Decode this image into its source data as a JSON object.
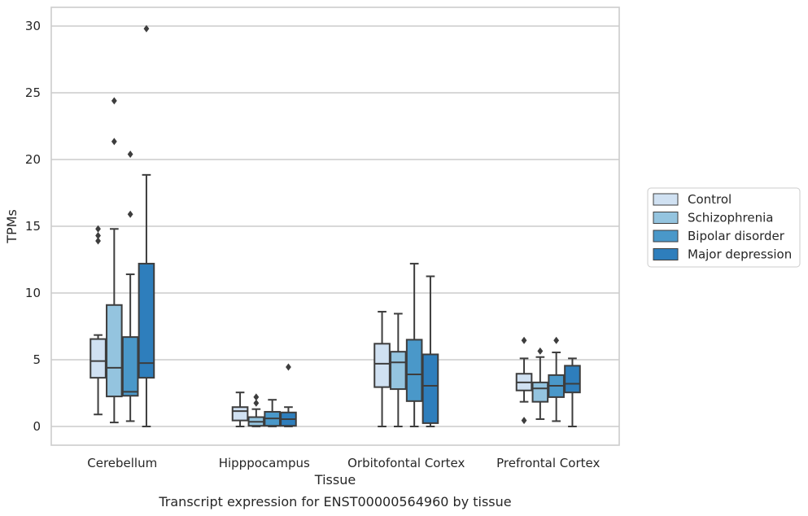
{
  "chart_data": {
    "type": "box",
    "xlabel": "Tissue",
    "ylabel": "TPMs",
    "caption": "Transcript expression for ENST00000564960 by tissue",
    "ylim": [
      -1.3,
      31.4
    ],
    "yticks": [
      0,
      5,
      10,
      15,
      20,
      25,
      30
    ],
    "grid": "horizontal",
    "legend_position": "right",
    "categories": [
      "Cerebellum",
      "Hipppocampus",
      "Orbitofontal Cortex",
      "Prefrontal Cortex"
    ],
    "series": [
      {
        "name": "Control",
        "color": "#d0e1f2",
        "boxes": [
          {
            "whisker_low": 0.9,
            "q1": 3.65,
            "median": 4.9,
            "q3": 6.55,
            "whisker_high": 6.85,
            "outliers": [
              13.9,
              14.3,
              14.8
            ]
          },
          {
            "whisker_low": 0.0,
            "q1": 0.45,
            "median": 1.15,
            "q3": 1.45,
            "whisker_high": 2.55,
            "outliers": []
          },
          {
            "whisker_low": 0.0,
            "q1": 2.95,
            "median": 4.7,
            "q3": 6.2,
            "whisker_high": 8.6,
            "outliers": []
          },
          {
            "whisker_low": 1.85,
            "q1": 2.7,
            "median": 3.3,
            "q3": 3.95,
            "whisker_high": 5.1,
            "outliers": [
              0.45,
              6.45
            ]
          }
        ]
      },
      {
        "name": "Schizophrenia",
        "color": "#94c4df",
        "boxes": [
          {
            "whisker_low": 0.3,
            "q1": 2.25,
            "median": 4.4,
            "q3": 9.1,
            "whisker_high": 14.8,
            "outliers": [
              21.35,
              24.4
            ]
          },
          {
            "whisker_low": 0.0,
            "q1": 0.05,
            "median": 0.35,
            "q3": 0.7,
            "whisker_high": 1.3,
            "outliers": [
              1.75,
              2.2
            ]
          },
          {
            "whisker_low": 0.0,
            "q1": 2.8,
            "median": 4.8,
            "q3": 5.6,
            "whisker_high": 8.45,
            "outliers": []
          },
          {
            "whisker_low": 0.55,
            "q1": 1.85,
            "median": 2.85,
            "q3": 3.3,
            "whisker_high": 5.2,
            "outliers": [
              5.65
            ]
          }
        ]
      },
      {
        "name": "Bipolar disorder",
        "color": "#4a98c9",
        "boxes": [
          {
            "whisker_low": 0.4,
            "q1": 2.3,
            "median": 2.6,
            "q3": 6.7,
            "whisker_high": 11.4,
            "outliers": [
              15.9,
              20.4
            ]
          },
          {
            "whisker_low": 0.0,
            "q1": 0.05,
            "median": 0.6,
            "q3": 1.1,
            "whisker_high": 2.0,
            "outliers": []
          },
          {
            "whisker_low": 0.0,
            "q1": 1.9,
            "median": 3.9,
            "q3": 6.5,
            "whisker_high": 12.2,
            "outliers": []
          },
          {
            "whisker_low": 0.4,
            "q1": 2.2,
            "median": 3.05,
            "q3": 3.85,
            "whisker_high": 5.55,
            "outliers": [
              6.45
            ]
          }
        ]
      },
      {
        "name": "Major depression",
        "color": "#2e7ebc",
        "boxes": [
          {
            "whisker_low": 0.0,
            "q1": 3.65,
            "median": 4.75,
            "q3": 12.2,
            "whisker_high": 18.85,
            "outliers": [
              29.8
            ]
          },
          {
            "whisker_low": 0.0,
            "q1": 0.05,
            "median": 0.55,
            "q3": 1.05,
            "whisker_high": 1.45,
            "outliers": [
              4.45
            ]
          },
          {
            "whisker_low": 0.0,
            "q1": 0.25,
            "median": 3.05,
            "q3": 5.4,
            "whisker_high": 11.25,
            "outliers": []
          },
          {
            "whisker_low": 0.0,
            "q1": 2.55,
            "median": 3.2,
            "q3": 4.55,
            "whisker_high": 5.1,
            "outliers": []
          }
        ]
      }
    ]
  }
}
